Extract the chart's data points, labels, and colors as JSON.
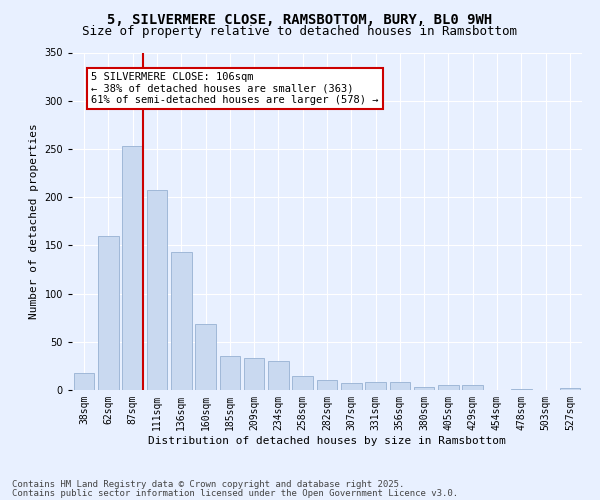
{
  "title_line1": "5, SILVERMERE CLOSE, RAMSBOTTOM, BURY, BL0 9WH",
  "title_line2": "Size of property relative to detached houses in Ramsbottom",
  "xlabel": "Distribution of detached houses by size in Ramsbottom",
  "ylabel": "Number of detached properties",
  "categories": [
    "38sqm",
    "62sqm",
    "87sqm",
    "111sqm",
    "136sqm",
    "160sqm",
    "185sqm",
    "209sqm",
    "234sqm",
    "258sqm",
    "282sqm",
    "307sqm",
    "331sqm",
    "356sqm",
    "380sqm",
    "405sqm",
    "429sqm",
    "454sqm",
    "478sqm",
    "503sqm",
    "527sqm"
  ],
  "values": [
    18,
    160,
    253,
    207,
    143,
    68,
    35,
    33,
    30,
    15,
    10,
    7,
    8,
    8,
    3,
    5,
    5,
    0,
    1,
    0,
    2
  ],
  "bar_color": "#c9d9f0",
  "bar_edge_color": "#a0b8d8",
  "vline_color": "#cc0000",
  "annotation_text": "5 SILVERMERE CLOSE: 106sqm\n← 38% of detached houses are smaller (363)\n61% of semi-detached houses are larger (578) →",
  "annotation_box_color": "#ffffff",
  "annotation_box_edge": "#cc0000",
  "ylim": [
    0,
    350
  ],
  "yticks": [
    0,
    50,
    100,
    150,
    200,
    250,
    300,
    350
  ],
  "background_color": "#e8f0ff",
  "footer_line1": "Contains HM Land Registry data © Crown copyright and database right 2025.",
  "footer_line2": "Contains public sector information licensed under the Open Government Licence v3.0.",
  "title_fontsize": 10,
  "subtitle_fontsize": 9,
  "axis_label_fontsize": 8,
  "tick_fontsize": 7,
  "annotation_fontsize": 7.5,
  "footer_fontsize": 6.5
}
